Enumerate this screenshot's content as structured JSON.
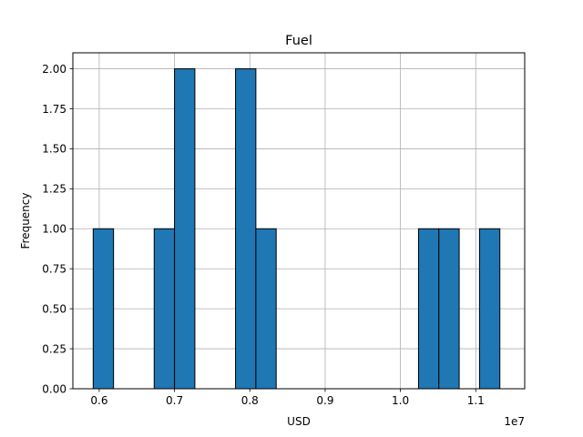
{
  "chart_data": {
    "type": "bar",
    "title": "Fuel",
    "xlabel": "USD",
    "ylabel": "Frequency",
    "x_offset_label": "1e7",
    "xlim": [
      5650000,
      11650000
    ],
    "ylim": [
      0,
      2.1
    ],
    "grid": true,
    "bar_color": "#1f77b4",
    "edge_color": "#000000",
    "x_ticks": [
      {
        "value": 6000000,
        "label": "0.6"
      },
      {
        "value": 7000000,
        "label": "0.7"
      },
      {
        "value": 8000000,
        "label": "0.8"
      },
      {
        "value": 9000000,
        "label": "0.9"
      },
      {
        "value": 10000000,
        "label": "1.0"
      },
      {
        "value": 11000000,
        "label": "1.1"
      }
    ],
    "y_ticks": [
      {
        "value": 0.0,
        "label": "0.00"
      },
      {
        "value": 0.25,
        "label": "0.25"
      },
      {
        "value": 0.5,
        "label": "0.50"
      },
      {
        "value": 0.75,
        "label": "0.75"
      },
      {
        "value": 1.0,
        "label": "1.00"
      },
      {
        "value": 1.25,
        "label": "1.25"
      },
      {
        "value": 1.5,
        "label": "1.50"
      },
      {
        "value": 1.75,
        "label": "1.75"
      },
      {
        "value": 2.0,
        "label": "2.00"
      }
    ],
    "bins": [
      {
        "start": 5920000,
        "end": 6190000,
        "count": 1
      },
      {
        "start": 6190000,
        "end": 6460000,
        "count": 0
      },
      {
        "start": 6460000,
        "end": 6730000,
        "count": 0
      },
      {
        "start": 6730000,
        "end": 7000000,
        "count": 1
      },
      {
        "start": 7000000,
        "end": 7270000,
        "count": 2
      },
      {
        "start": 7270000,
        "end": 7540000,
        "count": 0
      },
      {
        "start": 7540000,
        "end": 7810000,
        "count": 0
      },
      {
        "start": 7810000,
        "end": 8080000,
        "count": 2
      },
      {
        "start": 8080000,
        "end": 8350000,
        "count": 1
      },
      {
        "start": 8350000,
        "end": 8620000,
        "count": 0
      },
      {
        "start": 8620000,
        "end": 8890000,
        "count": 0
      },
      {
        "start": 8890000,
        "end": 9160000,
        "count": 0
      },
      {
        "start": 9160000,
        "end": 9430000,
        "count": 0
      },
      {
        "start": 9430000,
        "end": 9700000,
        "count": 0
      },
      {
        "start": 9700000,
        "end": 9970000,
        "count": 0
      },
      {
        "start": 9970000,
        "end": 10240000,
        "count": 0
      },
      {
        "start": 10240000,
        "end": 10510000,
        "count": 1
      },
      {
        "start": 10510000,
        "end": 10780000,
        "count": 1
      },
      {
        "start": 10780000,
        "end": 11050000,
        "count": 0
      },
      {
        "start": 11050000,
        "end": 11320000,
        "count": 1
      }
    ]
  }
}
